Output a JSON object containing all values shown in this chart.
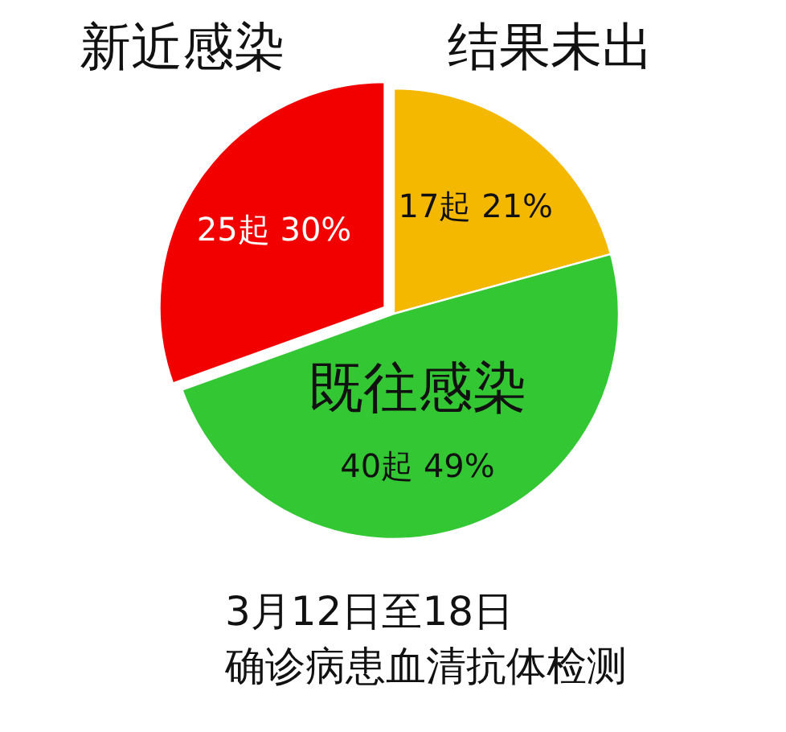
{
  "chart_data": {
    "type": "pie",
    "title": "3月12日至18日",
    "subtitle": "确诊病患血清抗体检测",
    "categories": [
      "新近感染",
      "结果未出",
      "既往感染"
    ],
    "values": [
      25,
      17,
      40
    ],
    "colors": [
      "#f20000",
      "#f5b800",
      "#33c733"
    ],
    "value_labels": [
      "25起 30%",
      "17起 21%",
      "40起 49%"
    ]
  }
}
